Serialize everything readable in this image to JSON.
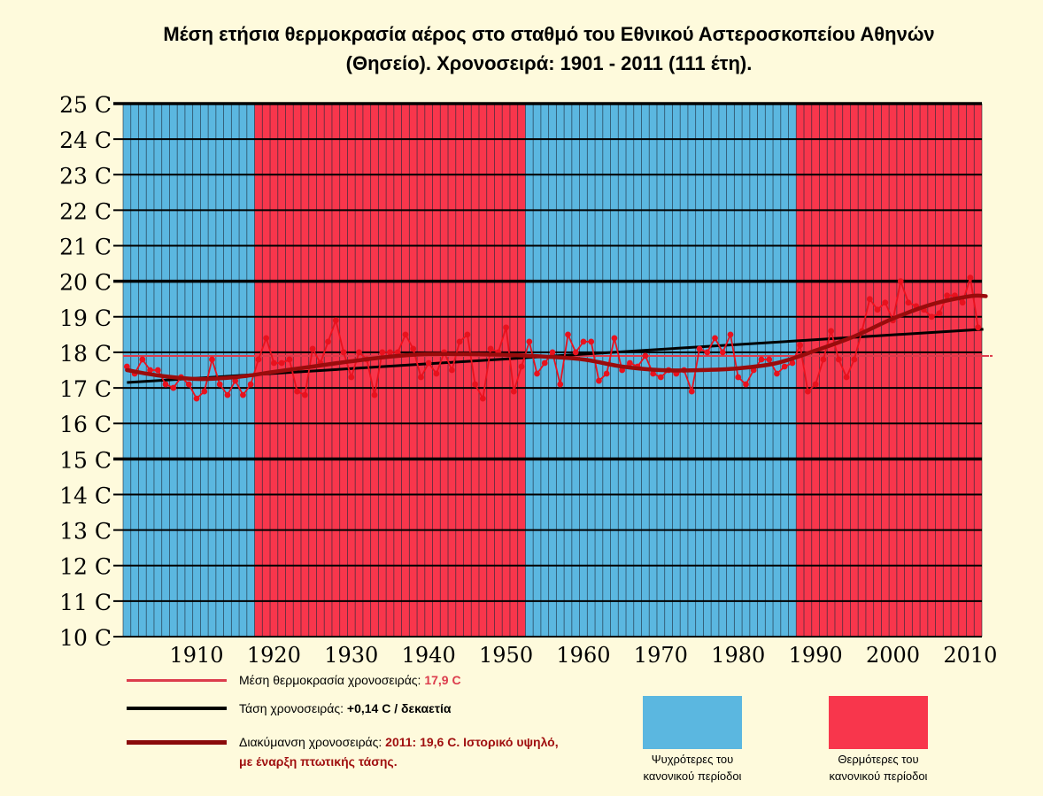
{
  "title": {
    "line1": "Μέση ετήσια θερμοκρασία αέρος στο σταθμό του Εθνικού Αστεροσκοπείου Αθηνών",
    "line2": "(Θησείο). Χρονοσειρά: 1901 - 2011 (111 έτη)."
  },
  "legend": {
    "mean": {
      "label": "Μέση θερμοκρασία χρονοσειράς: ",
      "value": "17,9 C",
      "color": "#dc3c4c"
    },
    "trend": {
      "label": "Τάση χρονοσειράς: ",
      "value": "+0,14 C / δεκαετία",
      "color": "#000000"
    },
    "smooth": {
      "label": "Διακύμανση χρονοσειράς: ",
      "value": "2011: 19,6 C. Ιστορικό υψηλό,",
      "value2": "με έναρξη πτωτικής τάσης.",
      "color": "#8a0a0a"
    },
    "cold": {
      "label_line1": "Ψυχρότερες του",
      "label_line2": "κανονικού περίοδοι",
      "color": "#5bb7e0"
    },
    "warm": {
      "label_line1": "Θερμότερες του",
      "label_line2": "κανονικού περίοδοι",
      "color": "#f8364c"
    }
  },
  "chart_data": {
    "type": "line",
    "xlim": [
      1901,
      2011
    ],
    "ylim": [
      10,
      25
    ],
    "x_ticks": [
      1910,
      1920,
      1930,
      1940,
      1950,
      1960,
      1970,
      1980,
      1990,
      2000,
      2010
    ],
    "y_ticks": [
      "10 C",
      "11 C",
      "12 C",
      "13 C",
      "14 C",
      "15 C",
      "16 C",
      "17 C",
      "18 C",
      "19 C",
      "20 C",
      "21 C",
      "22 C",
      "23 C",
      "24 C",
      "25 C"
    ],
    "periods": [
      {
        "type": "cold",
        "start": 1901,
        "end": 1918
      },
      {
        "type": "warm",
        "start": 1918,
        "end": 1953
      },
      {
        "type": "cold",
        "start": 1953,
        "end": 1988
      },
      {
        "type": "warm",
        "start": 1988,
        "end": 2011
      }
    ],
    "mean_value": 17.9,
    "trend_line": {
      "x": [
        1901,
        2011
      ],
      "y": [
        17.15,
        18.65
      ]
    },
    "series": [
      {
        "name": "annual",
        "x": [
          1901,
          1902,
          1903,
          1904,
          1905,
          1906,
          1907,
          1908,
          1909,
          1910,
          1911,
          1912,
          1913,
          1914,
          1915,
          1916,
          1917,
          1918,
          1919,
          1920,
          1921,
          1922,
          1923,
          1924,
          1925,
          1926,
          1927,
          1928,
          1929,
          1930,
          1931,
          1932,
          1933,
          1934,
          1935,
          1936,
          1937,
          1938,
          1939,
          1940,
          1941,
          1942,
          1943,
          1944,
          1945,
          1946,
          1947,
          1948,
          1949,
          1950,
          1951,
          1952,
          1953,
          1954,
          1955,
          1956,
          1957,
          1958,
          1959,
          1960,
          1961,
          1962,
          1963,
          1964,
          1965,
          1966,
          1967,
          1968,
          1969,
          1970,
          1971,
          1972,
          1973,
          1974,
          1975,
          1976,
          1977,
          1978,
          1979,
          1980,
          1981,
          1982,
          1983,
          1984,
          1985,
          1986,
          1987,
          1988,
          1989,
          1990,
          1991,
          1992,
          1993,
          1994,
          1995,
          1996,
          1997,
          1998,
          1999,
          2000,
          2001,
          2002,
          2003,
          2004,
          2005,
          2006,
          2007,
          2008,
          2009,
          2010,
          2011
        ],
        "y": [
          17.6,
          17.4,
          17.8,
          17.5,
          17.5,
          17.1,
          17.0,
          17.3,
          17.1,
          16.7,
          16.9,
          17.8,
          17.1,
          16.8,
          17.2,
          16.8,
          17.1,
          17.8,
          18.4,
          17.7,
          17.7,
          17.8,
          16.9,
          16.8,
          18.1,
          17.7,
          18.3,
          18.9,
          18.0,
          17.3,
          18.0,
          17.8,
          16.8,
          18.0,
          18.0,
          18.0,
          18.5,
          18.1,
          17.3,
          17.7,
          17.4,
          18.0,
          17.5,
          18.3,
          18.5,
          17.1,
          16.7,
          18.1,
          18.0,
          18.7,
          16.9,
          17.6,
          18.3,
          17.4,
          17.7,
          18.0,
          17.1,
          18.5,
          18.0,
          18.3,
          18.3,
          17.2,
          17.4,
          18.4,
          17.5,
          17.7,
          17.6,
          17.9,
          17.4,
          17.3,
          17.5,
          17.4,
          17.5,
          16.9,
          18.1,
          18.0,
          18.4,
          18.0,
          18.5,
          17.3,
          17.1,
          17.5,
          17.8,
          17.8,
          17.4,
          17.6,
          17.7,
          18.2,
          16.9,
          17.1,
          17.8,
          18.6,
          17.8,
          17.3,
          17.8,
          18.6,
          19.5,
          19.2,
          19.4,
          18.9,
          20.0,
          19.4,
          19.3,
          19.2,
          19.0,
          19.1,
          19.6,
          19.6,
          19.4,
          20.1,
          18.7
        ],
        "color": "#e8121e"
      },
      {
        "name": "smooth",
        "x": [
          1901,
          1905,
          1910,
          1915,
          1920,
          1925,
          1930,
          1935,
          1940,
          1945,
          1950,
          1955,
          1960,
          1965,
          1970,
          1975,
          1980,
          1985,
          1990,
          1995,
          2000,
          2005,
          2010,
          2012
        ],
        "y": [
          17.5,
          17.35,
          17.25,
          17.3,
          17.45,
          17.6,
          17.75,
          17.88,
          17.95,
          17.95,
          17.93,
          17.88,
          17.8,
          17.6,
          17.5,
          17.5,
          17.55,
          17.7,
          18.05,
          18.45,
          18.95,
          19.35,
          19.58,
          19.58
        ],
        "color": "#9a0c0c"
      }
    ]
  }
}
